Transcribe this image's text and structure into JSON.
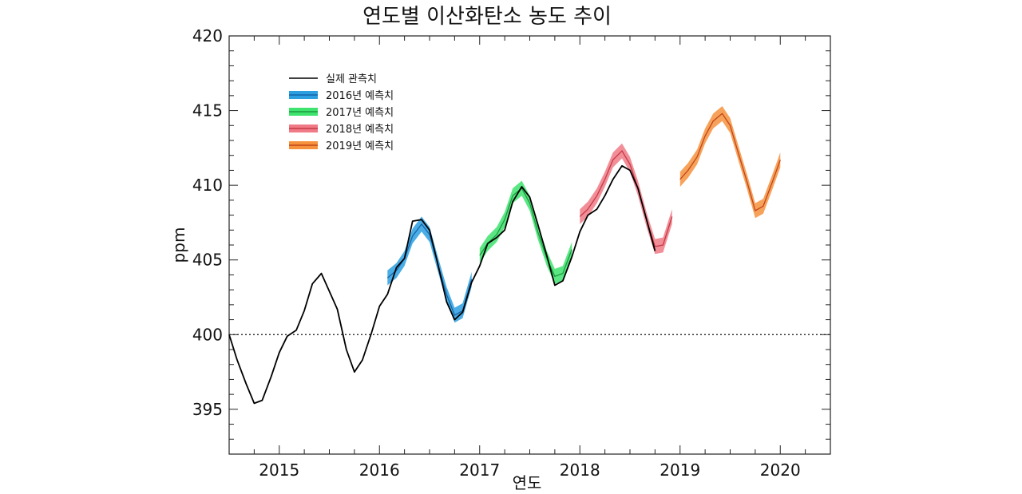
{
  "chart_data": {
    "type": "line",
    "title": "연도별 이산화탄소 농도 추이",
    "xlabel": "연도",
    "ylabel": "ppm",
    "xlim": [
      2014.5,
      2020.5
    ],
    "ylim": [
      392,
      420
    ],
    "xticks": [
      2015,
      2016,
      2017,
      2018,
      2019,
      2020
    ],
    "yticks": [
      395,
      400,
      405,
      410,
      415,
      420
    ],
    "reference_line": 400,
    "legend_position": "top-left",
    "grid": false,
    "observed": {
      "name": "실제 관측치",
      "color": "#000000",
      "x": [
        2014.5,
        2014.58,
        2014.67,
        2014.75,
        2014.83,
        2014.92,
        2015.0,
        2015.08,
        2015.17,
        2015.25,
        2015.33,
        2015.42,
        2015.5,
        2015.58,
        2015.67,
        2015.75,
        2015.83,
        2015.92,
        2016.0,
        2016.08,
        2016.17,
        2016.25,
        2016.33,
        2016.42,
        2016.5,
        2016.58,
        2016.67,
        2016.75,
        2016.83,
        2016.92,
        2017.0,
        2017.08,
        2017.17,
        2017.25,
        2017.33,
        2017.42,
        2017.5,
        2017.58,
        2017.67,
        2017.75,
        2017.83,
        2017.92,
        2018.0,
        2018.08,
        2018.17,
        2018.25,
        2018.33,
        2018.42,
        2018.5,
        2018.58,
        2018.67,
        2018.75
      ],
      "y": [
        400.0,
        398.3,
        396.7,
        395.4,
        395.6,
        397.2,
        398.8,
        399.9,
        400.3,
        401.6,
        403.4,
        404.1,
        402.9,
        401.7,
        399.0,
        397.5,
        398.3,
        400.1,
        401.9,
        402.7,
        404.5,
        405.1,
        407.6,
        407.7,
        407.0,
        404.8,
        402.2,
        401.0,
        401.5,
        403.5,
        404.6,
        406.1,
        406.5,
        407.0,
        408.9,
        409.9,
        409.2,
        407.4,
        405.3,
        403.3,
        403.6,
        405.2,
        406.9,
        408.0,
        408.4,
        409.3,
        410.4,
        411.3,
        411.0,
        409.8,
        407.6,
        405.6
      ]
    },
    "series": [
      {
        "name": "2016년 예측치",
        "color": "#2b9fe0",
        "line_color": "#1565a8",
        "x": [
          2016.08,
          2016.17,
          2016.25,
          2016.33,
          2016.42,
          2016.5,
          2016.58,
          2016.67,
          2016.75,
          2016.83,
          2016.92
        ],
        "y": [
          403.8,
          404.3,
          405.1,
          406.6,
          407.4,
          406.7,
          404.8,
          402.7,
          401.3,
          401.6,
          403.7
        ],
        "band": 0.5
      },
      {
        "name": "2017년 예측치",
        "color": "#3de36d",
        "line_color": "#1c9a3e",
        "x": [
          2017.0,
          2017.08,
          2017.17,
          2017.25,
          2017.33,
          2017.42,
          2017.5,
          2017.58,
          2017.67,
          2017.75,
          2017.83,
          2017.92
        ],
        "y": [
          405.3,
          406.1,
          406.7,
          407.7,
          409.3,
          409.8,
          408.8,
          406.9,
          405.1,
          403.9,
          404.1,
          405.7
        ],
        "band": 0.5
      },
      {
        "name": "2018년 예측치",
        "color": "#f07a85",
        "line_color": "#c53a48",
        "x": [
          2018.0,
          2018.08,
          2018.17,
          2018.25,
          2018.33,
          2018.42,
          2018.5,
          2018.58,
          2018.67,
          2018.75,
          2018.83,
          2018.92
        ],
        "y": [
          407.9,
          408.4,
          409.3,
          410.4,
          411.7,
          412.3,
          411.4,
          409.8,
          407.6,
          405.9,
          406.0,
          407.9
        ],
        "band": 0.5
      },
      {
        "name": "2019년 예측치",
        "color": "#f6923d",
        "line_color": "#c0451a",
        "x": [
          2019.0,
          2019.08,
          2019.17,
          2019.25,
          2019.33,
          2019.42,
          2019.5,
          2019.58,
          2019.67,
          2019.75,
          2019.83,
          2019.92,
          2020.0
        ],
        "y": [
          410.4,
          411.0,
          411.9,
          413.3,
          414.3,
          414.8,
          414.0,
          412.2,
          410.2,
          408.3,
          408.6,
          410.2,
          411.7
        ],
        "band": 0.5
      }
    ]
  }
}
